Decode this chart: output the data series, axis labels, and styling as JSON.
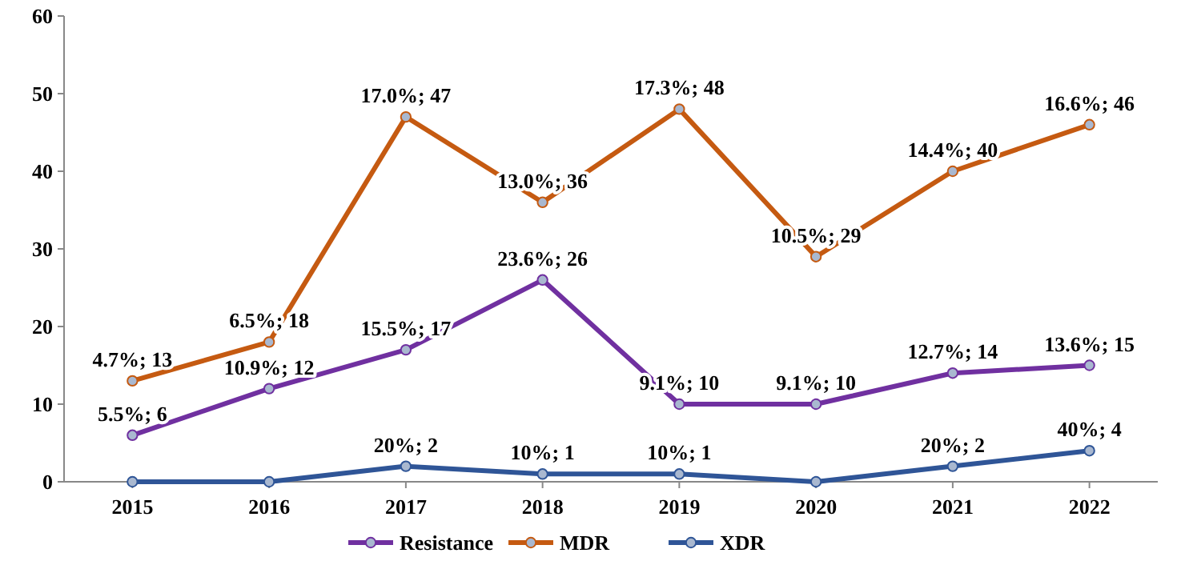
{
  "chart_data": {
    "type": "line",
    "categories": [
      "2015",
      "2016",
      "2017",
      "2018",
      "2019",
      "2020",
      "2021",
      "2022"
    ],
    "ylim": [
      0,
      60
    ],
    "yticks": [
      0,
      10,
      20,
      30,
      40,
      50,
      60
    ],
    "grid": false,
    "legend": "bottom",
    "marker": "circle",
    "line_style": "solid",
    "series": [
      {
        "name": "Resistance",
        "color": "#7030a0",
        "values": [
          6,
          12,
          17,
          26,
          10,
          10,
          14,
          15
        ],
        "value_labels": [
          "5.5%; 6",
          "10.9%; 12",
          "15.5%; 17",
          "23.6%; 26",
          "9.1%; 10",
          "9.1%; 10",
          "12.7%; 14",
          "13.6%; 15"
        ]
      },
      {
        "name": "MDR",
        "color": "#c55a11",
        "values": [
          13,
          18,
          47,
          36,
          48,
          29,
          40,
          46
        ],
        "value_labels": [
          "4.7%; 13",
          "6.5%; 18",
          "17.0%; 47",
          "13.0%; 36",
          "17.3%; 48",
          "10.5%; 29",
          "14.4%; 40",
          "16.6%; 46"
        ]
      },
      {
        "name": "XDR",
        "color": "#2f5597",
        "values": [
          0,
          0,
          2,
          1,
          1,
          0,
          2,
          4
        ],
        "value_labels": [
          null,
          null,
          "20%; 2",
          "10%; 1",
          "10%; 1",
          null,
          "20%; 2",
          "40%; 4"
        ]
      }
    ]
  }
}
